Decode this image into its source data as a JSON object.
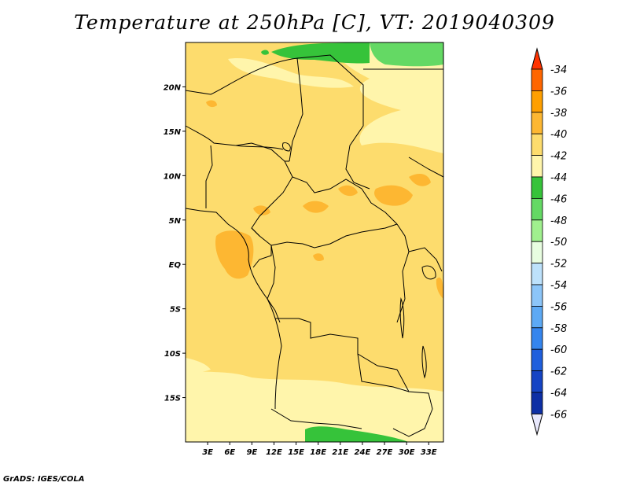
{
  "title": "Temperature at 250hPa [C], VT: 2019040309",
  "credit": "GrADS: IGES/COLA",
  "map": {
    "lon_range": [
      0,
      35
    ],
    "lat_range": [
      -20,
      25
    ],
    "lat_labels": [
      "20N",
      "15N",
      "10N",
      "5N",
      "EQ",
      "5S",
      "10S",
      "15S"
    ],
    "lat_values": [
      20,
      15,
      10,
      5,
      0,
      -5,
      -10,
      -15
    ],
    "lon_labels": [
      "3E",
      "6E",
      "9E",
      "12E",
      "15E",
      "18E",
      "21E",
      "24E",
      "27E",
      "30E",
      "33E"
    ],
    "lon_values": [
      3,
      6,
      9,
      12,
      15,
      18,
      21,
      24,
      27,
      30,
      33
    ]
  },
  "colorbar": {
    "labels": [
      "-34",
      "-36",
      "-38",
      "-40",
      "-42",
      "-44",
      "-46",
      "-48",
      "-50",
      "-52",
      "-54",
      "-56",
      "-58",
      "-60",
      "-62",
      "-64",
      "-66"
    ],
    "colors": [
      "#ff3300",
      "#ff6600",
      "#ff9f00",
      "#fdb732",
      "#fddc6d",
      "#fff5ab",
      "#36c33a",
      "#64d964",
      "#a0f08e",
      "#e8fde0",
      "#bde1fb",
      "#8cc5f8",
      "#5da9f4",
      "#3585ee",
      "#1f5fdd",
      "#1544c4",
      "#0d2fa5",
      "#0a1d86",
      "#e8e8fc"
    ]
  }
}
